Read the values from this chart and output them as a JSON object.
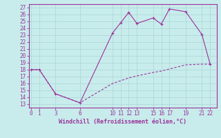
{
  "xlabel": "Windchill (Refroidissement éolien,°C)",
  "bg_color": "#c8ecec",
  "line_color": "#993399",
  "grid_color": "#aad4d4",
  "x_upper": [
    0,
    1,
    3,
    6,
    10,
    11,
    12,
    13,
    15,
    16,
    17,
    19,
    21,
    22
  ],
  "y_upper": [
    18,
    18,
    14.5,
    13.2,
    23.3,
    24.8,
    26.3,
    24.7,
    25.5,
    24.6,
    26.8,
    26.4,
    23.1,
    18.8
  ],
  "x_lower": [
    0,
    1,
    3,
    6,
    10,
    11,
    12,
    13,
    15,
    16,
    17,
    19,
    21,
    22
  ],
  "y_lower": [
    18,
    18,
    14.5,
    13.2,
    16.0,
    16.4,
    16.8,
    17.1,
    17.6,
    17.8,
    18.1,
    18.7,
    18.8,
    18.8
  ],
  "yticks": [
    13,
    14,
    15,
    16,
    17,
    18,
    19,
    20,
    21,
    22,
    23,
    24,
    25,
    26,
    27
  ],
  "xticks": [
    0,
    1,
    3,
    6,
    10,
    11,
    12,
    13,
    15,
    16,
    17,
    19,
    21,
    22
  ],
  "xlim": [
    -0.3,
    22.8
  ],
  "ylim": [
    12.5,
    27.5
  ]
}
